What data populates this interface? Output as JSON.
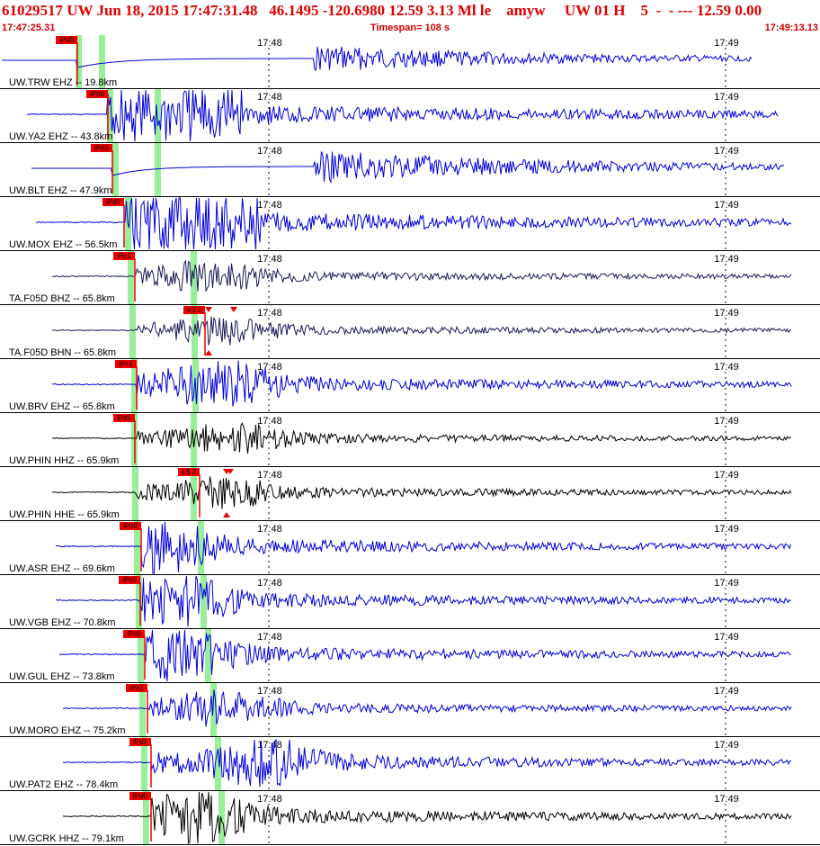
{
  "header": {
    "title": "61029517 UW Jun 18, 2015 17:47:31.48   46.1495 -120.6980 12.59 3.13 Ml le    amyw     UW 01 H    5  -  - --- 12.59 0.00",
    "start_time": "17:47:25.31",
    "timespan": "Timespan= 108 s",
    "end_time": "17:49:13.13"
  },
  "time_ticks": [
    "17:48",
    "17:49"
  ],
  "colors": {
    "header": "#e00000",
    "blue": "#0000dd",
    "black": "#000000",
    "navy": "#1a1a5a",
    "pick": "#ee0000",
    "band": "#99ee99"
  },
  "traces": [
    {
      "label": "UW.TRW EHZ -- 19.8km",
      "pick": "iPd0",
      "color": "blue"
    },
    {
      "label": "UW.YA2 EHZ -- 43.8km",
      "pick": "iPd0",
      "color": "blue"
    },
    {
      "label": "UW.BLT EHZ -- 47.9km",
      "pick": "iPd1",
      "color": "blue"
    },
    {
      "label": "UW.MOX EHZ -- 56.5km",
      "pick": "iPd0",
      "color": "blue"
    },
    {
      "label": "TA.F05D BHZ -- 65.8km",
      "pick": "iPc1",
      "color": "navy"
    },
    {
      "label": "TA.F05D BHN -- 65.8km",
      "pick": "eS 2",
      "color": "navy"
    },
    {
      "label": "UW.BRV EHZ -- 65.8km",
      "pick": "iPc1",
      "color": "blue"
    },
    {
      "label": "UW.PHIN HHZ -- 65.9km",
      "pick": "iPd1",
      "color": "black"
    },
    {
      "label": "UW.PHIN HHE -- 65.9km",
      "pick": "eS 2",
      "color": "black"
    },
    {
      "label": "UW.ASR EHZ -- 69.6km",
      "pick": "iPd0",
      "color": "blue"
    },
    {
      "label": "UW.VGB EHZ -- 70.8km",
      "pick": "iPc0",
      "color": "blue"
    },
    {
      "label": "UW.GUL EHZ -- 73.8km",
      "pick": "iPc0",
      "color": "blue"
    },
    {
      "label": "UW.MORO EHZ -- 75.2km",
      "pick": "iPc1",
      "color": "blue"
    },
    {
      "label": "UW.PAT2 EHZ -- 78.4km",
      "pick": "iPd1",
      "color": "blue"
    },
    {
      "label": "UW.GCRK HHZ -- 79.1km",
      "pick": "iPd0",
      "color": "black"
    }
  ]
}
